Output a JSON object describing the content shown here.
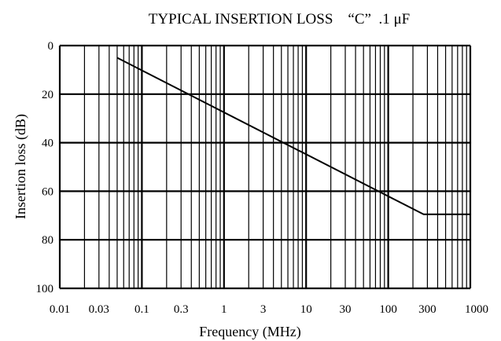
{
  "chart_data": {
    "type": "line",
    "title": "TYPICAL INSERTION LOSS    “C”  .1 μF",
    "xlabel": "Frequency (MHz)",
    "ylabel": "Insertion loss (dB)",
    "x_scale": "log",
    "xlim": [
      0.01,
      1000
    ],
    "ylim": [
      0,
      100
    ],
    "y_inverted": true,
    "grid": true,
    "x_ticks": [
      {
        "value": 0.01,
        "label": "0.01"
      },
      {
        "value": 0.03,
        "label": "0.03"
      },
      {
        "value": 0.1,
        "label": "0.1"
      },
      {
        "value": 0.3,
        "label": "0.3"
      },
      {
        "value": 1,
        "label": "1"
      },
      {
        "value": 3,
        "label": "3"
      },
      {
        "value": 10,
        "label": "10"
      },
      {
        "value": 30,
        "label": "30"
      },
      {
        "value": 100,
        "label": "100"
      },
      {
        "value": 300,
        "label": "300"
      },
      {
        "value": 1000,
        "label": "1000"
      }
    ],
    "y_ticks": [
      {
        "value": 0,
        "label": "0"
      },
      {
        "value": 20,
        "label": "20"
      },
      {
        "value": 40,
        "label": "40"
      },
      {
        "value": 60,
        "label": "60"
      },
      {
        "value": 80,
        "label": "80"
      },
      {
        "value": 100,
        "label": "100"
      }
    ],
    "series": [
      {
        "x": [
          0.05,
          270,
          1000
        ],
        "y": [
          5,
          69.5,
          69.5
        ]
      }
    ],
    "colors": {
      "line": "#000000",
      "grid": "#000000",
      "background": "#ffffff"
    }
  }
}
